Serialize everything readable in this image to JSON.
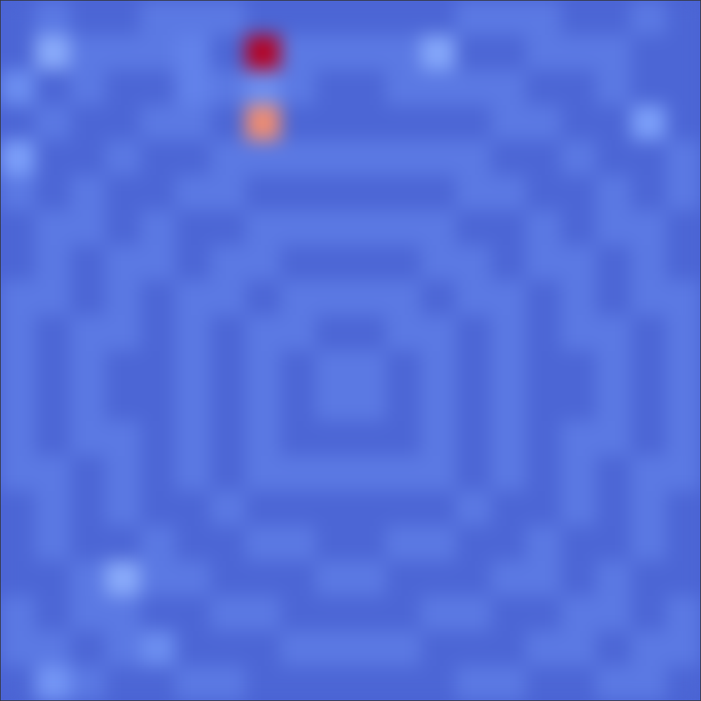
{
  "chart_data": {
    "type": "heatmap",
    "tick_labels": false,
    "zlim": [
      0,
      1
    ],
    "cells": [
      [
        0.11,
        0.17,
        0.11,
        0.11,
        0.17,
        0.17,
        0.17,
        0.11,
        0.11,
        0.11,
        0.11,
        0.11,
        0.11,
        0.17,
        0.17,
        0.17,
        0.11,
        0.11,
        0.17,
        0.11
      ],
      [
        0.11,
        0.33,
        0.17,
        0.17,
        0.17,
        0.2,
        0.11,
        1.0,
        0.17,
        0.17,
        0.17,
        0.17,
        0.32,
        0.11,
        0.11,
        0.17,
        0.17,
        0.17,
        0.11,
        0.11
      ],
      [
        0.24,
        0.11,
        0.17,
        0.11,
        0.11,
        0.2,
        0.17,
        0.24,
        0.17,
        0.11,
        0.11,
        0.17,
        0.17,
        0.17,
        0.17,
        0.11,
        0.11,
        0.17,
        0.11,
        0.11
      ],
      [
        0.11,
        0.17,
        0.11,
        0.11,
        0.17,
        0.17,
        0.11,
        0.78,
        0.11,
        0.11,
        0.11,
        0.11,
        0.11,
        0.11,
        0.17,
        0.17,
        0.11,
        0.11,
        0.3,
        0.11
      ],
      [
        0.3,
        0.11,
        0.11,
        0.17,
        0.11,
        0.11,
        0.17,
        0.17,
        0.17,
        0.17,
        0.17,
        0.17,
        0.17,
        0.17,
        0.11,
        0.11,
        0.17,
        0.11,
        0.11,
        0.17
      ],
      [
        0.17,
        0.11,
        0.17,
        0.11,
        0.11,
        0.17,
        0.17,
        0.11,
        0.11,
        0.11,
        0.11,
        0.11,
        0.11,
        0.17,
        0.17,
        0.11,
        0.11,
        0.17,
        0.11,
        0.17
      ],
      [
        0.11,
        0.17,
        0.17,
        0.11,
        0.17,
        0.11,
        0.11,
        0.17,
        0.17,
        0.17,
        0.17,
        0.17,
        0.17,
        0.11,
        0.11,
        0.17,
        0.11,
        0.17,
        0.17,
        0.11
      ],
      [
        0.11,
        0.17,
        0.11,
        0.17,
        0.17,
        0.11,
        0.17,
        0.17,
        0.11,
        0.11,
        0.11,
        0.11,
        0.17,
        0.17,
        0.11,
        0.17,
        0.17,
        0.11,
        0.17,
        0.11
      ],
      [
        0.17,
        0.17,
        0.11,
        0.17,
        0.11,
        0.17,
        0.17,
        0.11,
        0.17,
        0.17,
        0.17,
        0.17,
        0.11,
        0.17,
        0.17,
        0.11,
        0.17,
        0.11,
        0.17,
        0.17
      ],
      [
        0.17,
        0.11,
        0.17,
        0.17,
        0.11,
        0.17,
        0.11,
        0.17,
        0.17,
        0.11,
        0.11,
        0.17,
        0.17,
        0.11,
        0.17,
        0.11,
        0.17,
        0.17,
        0.11,
        0.17
      ],
      [
        0.17,
        0.11,
        0.17,
        0.11,
        0.11,
        0.17,
        0.11,
        0.17,
        0.11,
        0.17,
        0.17,
        0.11,
        0.17,
        0.11,
        0.17,
        0.11,
        0.11,
        0.17,
        0.11,
        0.17
      ],
      [
        0.17,
        0.11,
        0.17,
        0.11,
        0.11,
        0.17,
        0.11,
        0.17,
        0.11,
        0.17,
        0.17,
        0.11,
        0.17,
        0.11,
        0.17,
        0.11,
        0.11,
        0.17,
        0.11,
        0.17
      ],
      [
        0.17,
        0.11,
        0.17,
        0.17,
        0.11,
        0.17,
        0.11,
        0.17,
        0.11,
        0.11,
        0.11,
        0.11,
        0.17,
        0.11,
        0.17,
        0.11,
        0.17,
        0.17,
        0.11,
        0.17
      ],
      [
        0.17,
        0.17,
        0.11,
        0.17,
        0.11,
        0.17,
        0.11,
        0.17,
        0.17,
        0.17,
        0.17,
        0.17,
        0.17,
        0.11,
        0.17,
        0.11,
        0.17,
        0.11,
        0.17,
        0.17
      ],
      [
        0.11,
        0.17,
        0.11,
        0.17,
        0.11,
        0.11,
        0.17,
        0.11,
        0.11,
        0.11,
        0.11,
        0.11,
        0.11,
        0.17,
        0.11,
        0.11,
        0.17,
        0.11,
        0.17,
        0.11
      ],
      [
        0.11,
        0.17,
        0.11,
        0.11,
        0.17,
        0.11,
        0.11,
        0.17,
        0.17,
        0.11,
        0.11,
        0.17,
        0.17,
        0.11,
        0.11,
        0.17,
        0.11,
        0.11,
        0.17,
        0.11
      ],
      [
        0.11,
        0.11,
        0.17,
        0.33,
        0.17,
        0.17,
        0.11,
        0.11,
        0.11,
        0.17,
        0.17,
        0.11,
        0.11,
        0.11,
        0.17,
        0.17,
        0.11,
        0.17,
        0.11,
        0.11
      ],
      [
        0.17,
        0.11,
        0.17,
        0.17,
        0.11,
        0.11,
        0.17,
        0.17,
        0.11,
        0.11,
        0.11,
        0.11,
        0.17,
        0.17,
        0.11,
        0.11,
        0.17,
        0.17,
        0.11,
        0.17
      ],
      [
        0.17,
        0.17,
        0.11,
        0.17,
        0.24,
        0.11,
        0.11,
        0.11,
        0.17,
        0.17,
        0.17,
        0.17,
        0.11,
        0.11,
        0.11,
        0.17,
        0.17,
        0.11,
        0.17,
        0.17
      ],
      [
        0.11,
        0.27,
        0.17,
        0.11,
        0.11,
        0.17,
        0.17,
        0.11,
        0.11,
        0.11,
        0.11,
        0.11,
        0.11,
        0.17,
        0.17,
        0.11,
        0.11,
        0.17,
        0.17,
        0.11
      ]
    ]
  }
}
